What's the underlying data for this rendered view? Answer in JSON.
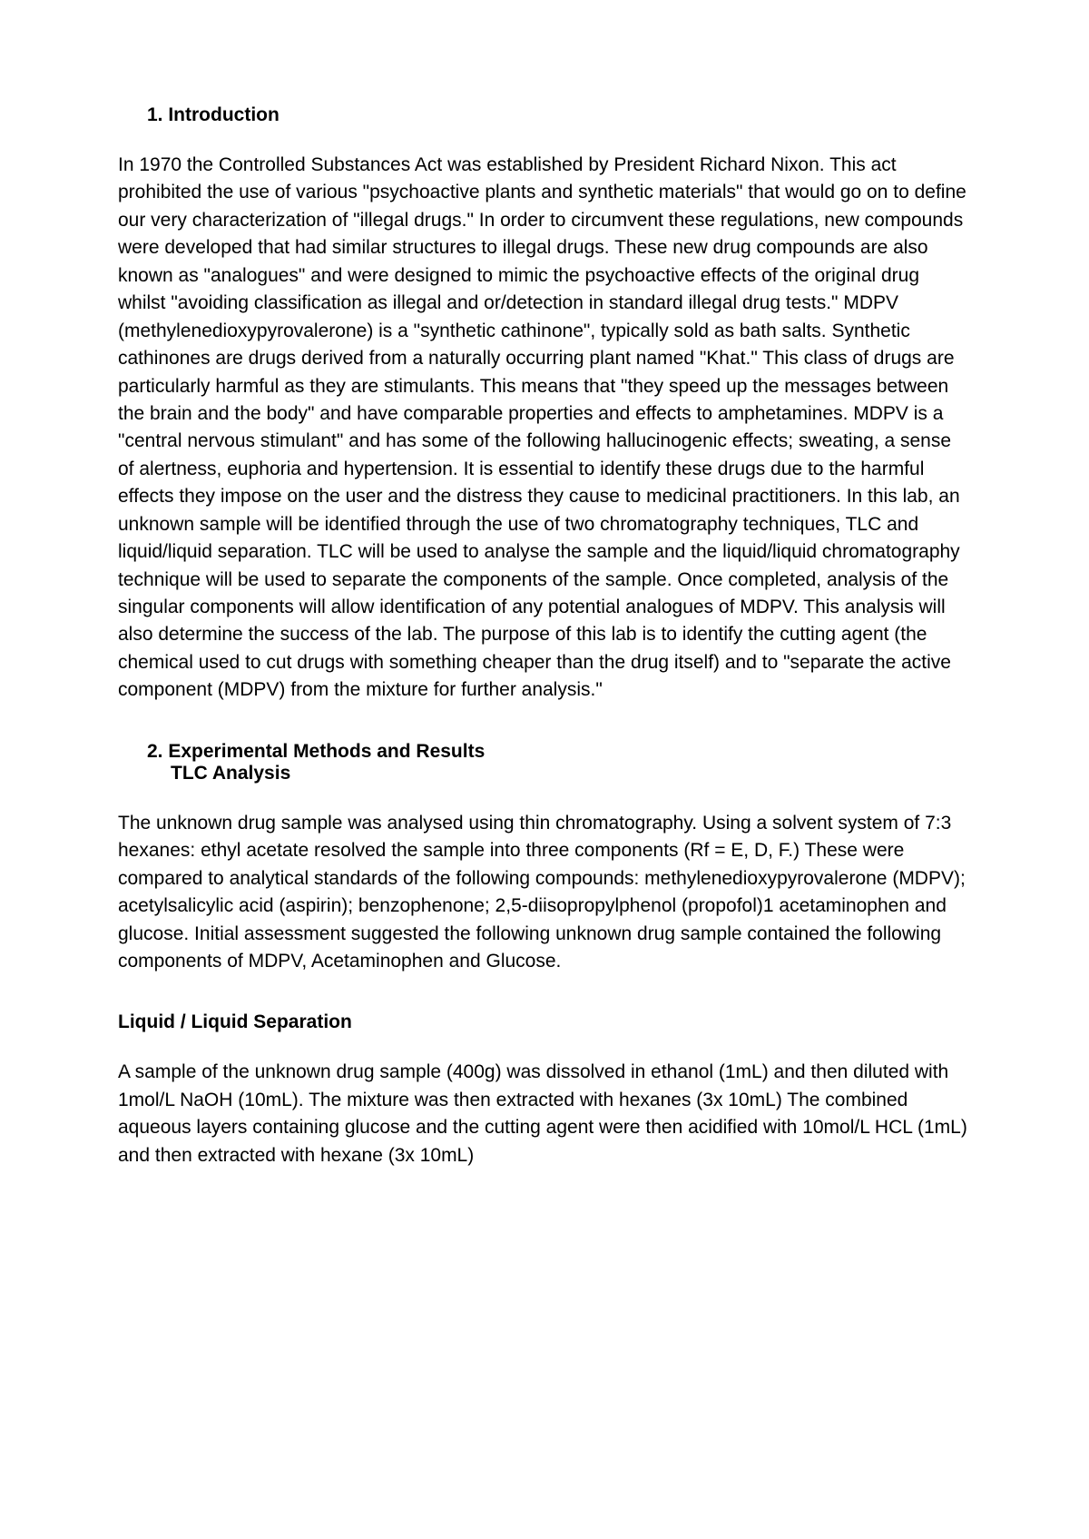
{
  "section1": {
    "heading": "1.  Introduction",
    "paragraph": "In 1970 the Controlled Substances Act was established by President Richard Nixon. This act prohibited the use of various \"psychoactive plants and synthetic materials\" that would go on to define our very characterization of \"illegal drugs.\" In order to circumvent these regulations, new compounds were developed that had similar structures to illegal drugs. These new drug compounds are also known as \"analogues\" and were designed to mimic the psychoactive effects of the original drug whilst \"avoiding classification as illegal and or/detection in standard illegal drug tests.\"  MDPV (methylenedioxypyrovalerone) is a \"synthetic cathinone\", typically sold as bath salts. Synthetic cathinones are drugs derived from a naturally occurring plant named \"Khat.\" This class of drugs are particularly harmful as they are stimulants. This means that \"they speed up the messages between the brain and the body\" and have comparable properties and effects to amphetamines. MDPV is a \"central nervous stimulant\" and has some of the following hallucinogenic effects; sweating, a sense of alertness, euphoria and hypertension. It is essential to identify these drugs due to the harmful effects they impose on the user and the distress they cause to medicinal practitioners. In this lab, an unknown sample will be identified through the use of two chromatography techniques, TLC and liquid/liquid separation. TLC will be used to analyse the sample and the liquid/liquid chromatography technique will be used to separate the components of the sample. Once completed, analysis of the singular components will allow identification of any potential analogues of MDPV. This analysis will also determine the success of the lab. The purpose of this lab is to identify the cutting agent (the chemical used to cut drugs with something cheaper than the drug itself) and to \"separate the active  component (MDPV) from the mixture for further analysis.\""
  },
  "section2": {
    "heading_line1": "2.  Experimental Methods and Results",
    "heading_line2": "TLC Analysis",
    "paragraph": "The unknown drug sample was analysed using thin chromatography. Using a solvent system of 7:3 hexanes: ethyl acetate resolved the sample into three components (Rf = E, D, F.) These were compared to analytical standards of the following compounds: methylenedioxypyrovalerone (MDPV); acetylsalicylic acid (aspirin); benzophenone; 2,5-diisopropylphenol (propofol)1 acetaminophen and glucose. Initial assessment suggested the following unknown drug sample contained the following components of MDPV, Acetaminophen and Glucose."
  },
  "section3": {
    "heading": "Liquid / Liquid Separation",
    "paragraph": "A sample of the unknown drug sample (400g) was dissolved in ethanol (1mL) and then diluted with 1mol/L NaOH (10mL). The mixture was then extracted with hexanes (3x 10mL) The combined aqueous layers containing glucose and the cutting agent were then acidified with 10mol/L HCL (1mL) and then extracted with hexane (3x 10mL)"
  }
}
